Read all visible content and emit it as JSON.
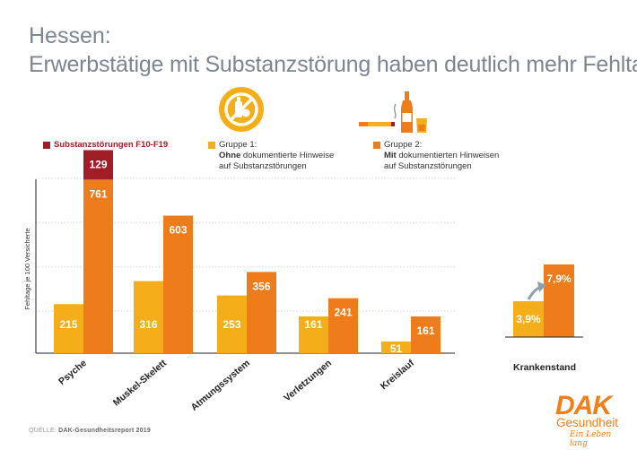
{
  "title": "Hessen:",
  "subtitle": "Erwerbstätige mit Substanzstörung haben deutlich mehr Fehltage",
  "legend": {
    "substance": "Substanzstörungen F10-F19",
    "group1_line1": "Gruppe 1:",
    "group1_line2_bold": "Ohne",
    "group1_line2_rest": " dokumentierte Hinweise",
    "group1_line3": "auf Substanzstörungen",
    "group2_line1": "Gruppe 2:",
    "group2_line2_bold": "Mit",
    "group2_line2_rest": " dokumentierten Hinweisen",
    "group2_line3": "auf Substanzstörungen"
  },
  "icons": {
    "no_substances": "no-substances-icon",
    "substances": "cigarette-bottle-glass-icon",
    "trend": "trend-arrow-icon"
  },
  "colors": {
    "group1": "#f4ae1a",
    "group2": "#ee7c1a",
    "substance": "#a01c26",
    "grid": "#cfcfcf",
    "title": "#7d8590"
  },
  "chart_data": [
    {
      "type": "bar",
      "ylabel": "Fehltage je 100 Versicherte",
      "ylim": [
        0,
        950
      ],
      "grid": true,
      "categories": [
        "Psyche",
        "Muskel-Skelett",
        "Atmungssystem",
        "Verletzungen",
        "Kreislauf"
      ],
      "series": [
        {
          "name": "Gruppe 1",
          "values": [
            215,
            316,
            253,
            161,
            51
          ],
          "labels": [
            "215",
            "316",
            "253",
            "161",
            "51"
          ]
        },
        {
          "name": "Gruppe 2",
          "values": [
            761,
            603,
            356,
            241,
            161
          ],
          "labels": [
            "761",
            "603",
            "356",
            "241",
            "161"
          ]
        },
        {
          "name": "Substanzstörungen F10-F19",
          "values": [
            129,
            null,
            null,
            null,
            null
          ],
          "labels": [
            "129",
            "",
            "",
            "",
            ""
          ]
        }
      ]
    },
    {
      "type": "bar",
      "categories": [
        "Krankenstand"
      ],
      "ylim": [
        0,
        12
      ],
      "series": [
        {
          "name": "Gruppe 1",
          "values": [
            3.9
          ],
          "labels": [
            "3,9%"
          ]
        },
        {
          "name": "Gruppe 2",
          "values": [
            7.9
          ],
          "labels": [
            "7,9%"
          ]
        }
      ]
    }
  ],
  "source": {
    "prefix": "QUELLE: ",
    "text": "DAK-Gesundheitsreport 2019"
  },
  "logo": {
    "brand": "DAK",
    "name": "Gesundheit",
    "slogan": "Ein Leben lang"
  }
}
